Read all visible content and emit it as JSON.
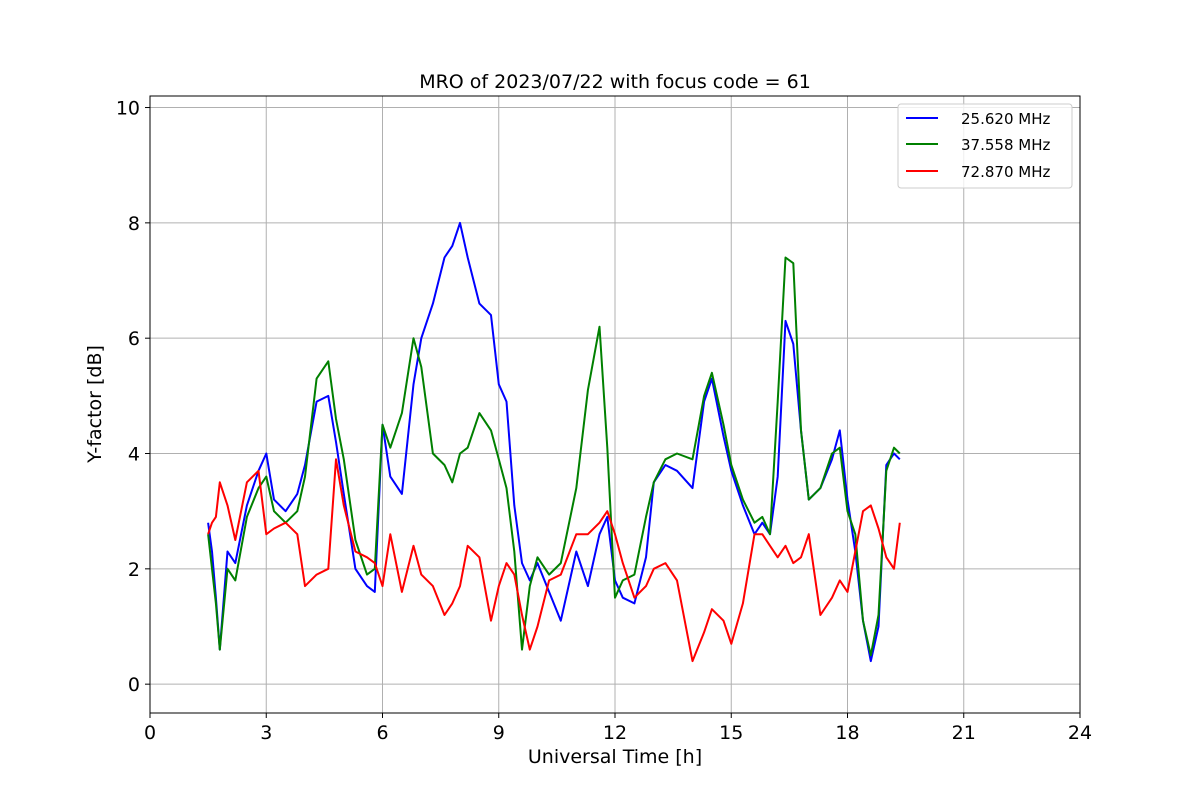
{
  "chart_data": {
    "type": "line",
    "title": "MRO of 2023/07/22 with focus code = 61",
    "xlabel": "Universal Time [h]",
    "ylabel": "Y-factor [dB]",
    "xlim": [
      0,
      24
    ],
    "ylim": [
      -0.5,
      10.2
    ],
    "xticks": [
      0,
      3,
      6,
      9,
      12,
      15,
      18,
      21,
      24
    ],
    "yticks": [
      0,
      2,
      4,
      6,
      8,
      10
    ],
    "grid": true,
    "legend_position": "top-right",
    "series": [
      {
        "name": "25.620 MHz",
        "color": "#0000ff",
        "x": [
          1.5,
          1.6,
          1.7,
          1.8,
          2.0,
          2.2,
          2.5,
          2.8,
          3.0,
          3.2,
          3.5,
          3.8,
          4.0,
          4.3,
          4.6,
          4.8,
          5.0,
          5.3,
          5.6,
          5.8,
          6.0,
          6.2,
          6.5,
          6.8,
          7.0,
          7.3,
          7.6,
          7.8,
          8.0,
          8.2,
          8.5,
          8.8,
          9.0,
          9.2,
          9.4,
          9.6,
          9.8,
          10.0,
          10.3,
          10.6,
          11.0,
          11.3,
          11.6,
          11.8,
          12.0,
          12.2,
          12.5,
          12.8,
          13.0,
          13.3,
          13.6,
          14.0,
          14.3,
          14.5,
          14.8,
          15.0,
          15.3,
          15.6,
          15.8,
          16.0,
          16.2,
          16.4,
          16.6,
          16.8,
          17.0,
          17.3,
          17.6,
          17.8,
          18.0,
          18.2,
          18.4,
          18.6,
          18.8,
          19.0,
          19.2,
          19.35
        ],
        "values": [
          2.8,
          2.3,
          1.5,
          0.6,
          2.3,
          2.1,
          3.1,
          3.7,
          4.0,
          3.2,
          3.0,
          3.3,
          3.8,
          4.9,
          5.0,
          4.2,
          3.3,
          2.0,
          1.7,
          1.6,
          4.5,
          3.6,
          3.3,
          5.2,
          6.0,
          6.6,
          7.4,
          7.6,
          8.0,
          7.4,
          6.6,
          6.4,
          5.2,
          4.9,
          3.1,
          2.1,
          1.8,
          2.1,
          1.6,
          1.1,
          2.3,
          1.7,
          2.6,
          2.9,
          1.8,
          1.5,
          1.4,
          2.2,
          3.5,
          3.8,
          3.7,
          3.4,
          4.9,
          5.3,
          4.3,
          3.7,
          3.1,
          2.6,
          2.8,
          2.6,
          3.6,
          6.3,
          5.9,
          4.4,
          3.2,
          3.4,
          3.9,
          4.4,
          3.2,
          2.3,
          1.1,
          0.4,
          1.0,
          3.8,
          4.0,
          3.9
        ]
      },
      {
        "name": "37.558 MHz",
        "color": "#008000",
        "x": [
          1.5,
          1.6,
          1.7,
          1.8,
          2.0,
          2.2,
          2.5,
          2.8,
          3.0,
          3.2,
          3.5,
          3.8,
          4.0,
          4.3,
          4.6,
          4.8,
          5.0,
          5.3,
          5.6,
          5.8,
          6.0,
          6.2,
          6.5,
          6.8,
          7.0,
          7.3,
          7.6,
          7.8,
          8.0,
          8.2,
          8.5,
          8.8,
          9.0,
          9.2,
          9.4,
          9.6,
          9.8,
          10.0,
          10.3,
          10.6,
          11.0,
          11.3,
          11.6,
          11.8,
          12.0,
          12.2,
          12.5,
          12.8,
          13.0,
          13.3,
          13.6,
          14.0,
          14.3,
          14.5,
          14.8,
          15.0,
          15.3,
          15.6,
          15.8,
          16.0,
          16.2,
          16.4,
          16.6,
          16.8,
          17.0,
          17.3,
          17.6,
          17.8,
          18.0,
          18.2,
          18.4,
          18.6,
          18.8,
          19.0,
          19.2,
          19.35
        ],
        "values": [
          2.6,
          2.0,
          1.4,
          0.6,
          2.0,
          1.8,
          2.9,
          3.4,
          3.6,
          3.0,
          2.8,
          3.0,
          3.6,
          5.3,
          5.6,
          4.6,
          3.9,
          2.5,
          1.9,
          2.0,
          4.5,
          4.1,
          4.7,
          6.0,
          5.5,
          4.0,
          3.8,
          3.5,
          4.0,
          4.1,
          4.7,
          4.4,
          3.9,
          3.4,
          2.3,
          0.6,
          1.7,
          2.2,
          1.9,
          2.1,
          3.4,
          5.1,
          6.2,
          4.1,
          1.5,
          1.8,
          1.9,
          2.9,
          3.5,
          3.9,
          4.0,
          3.9,
          5.0,
          5.4,
          4.5,
          3.8,
          3.2,
          2.8,
          2.9,
          2.6,
          4.9,
          7.4,
          7.3,
          4.4,
          3.2,
          3.4,
          4.0,
          4.1,
          3.0,
          2.6,
          1.1,
          0.5,
          1.2,
          3.7,
          4.1,
          4.0
        ]
      },
      {
        "name": "72.870 MHz",
        "color": "#ff0000",
        "x": [
          1.5,
          1.6,
          1.7,
          1.8,
          2.0,
          2.2,
          2.5,
          2.8,
          3.0,
          3.2,
          3.5,
          3.8,
          4.0,
          4.3,
          4.6,
          4.8,
          5.0,
          5.3,
          5.6,
          5.8,
          6.0,
          6.2,
          6.5,
          6.8,
          7.0,
          7.3,
          7.6,
          7.8,
          8.0,
          8.2,
          8.5,
          8.8,
          9.0,
          9.2,
          9.4,
          9.6,
          9.8,
          10.0,
          10.3,
          10.6,
          11.0,
          11.3,
          11.6,
          11.8,
          12.0,
          12.2,
          12.5,
          12.8,
          13.0,
          13.3,
          13.6,
          14.0,
          14.3,
          14.5,
          14.8,
          15.0,
          15.3,
          15.6,
          15.8,
          16.0,
          16.2,
          16.4,
          16.6,
          16.8,
          17.0,
          17.3,
          17.6,
          17.8,
          18.0,
          18.2,
          18.4,
          18.6,
          18.8,
          19.0,
          19.2,
          19.35
        ],
        "values": [
          2.6,
          2.8,
          2.9,
          3.5,
          3.1,
          2.5,
          3.5,
          3.7,
          2.6,
          2.7,
          2.8,
          2.6,
          1.7,
          1.9,
          2.0,
          3.9,
          3.1,
          2.3,
          2.2,
          2.1,
          1.7,
          2.6,
          1.6,
          2.4,
          1.9,
          1.7,
          1.2,
          1.4,
          1.7,
          2.4,
          2.2,
          1.1,
          1.7,
          2.1,
          1.9,
          1.2,
          0.6,
          1.0,
          1.8,
          1.9,
          2.6,
          2.6,
          2.8,
          3.0,
          2.6,
          2.1,
          1.5,
          1.7,
          2.0,
          2.1,
          1.8,
          0.4,
          0.9,
          1.3,
          1.1,
          0.7,
          1.4,
          2.6,
          2.6,
          2.4,
          2.2,
          2.4,
          2.1,
          2.2,
          2.6,
          1.2,
          1.5,
          1.8,
          1.6,
          2.3,
          3.0,
          3.1,
          2.7,
          2.2,
          2.0,
          2.8
        ]
      }
    ]
  }
}
